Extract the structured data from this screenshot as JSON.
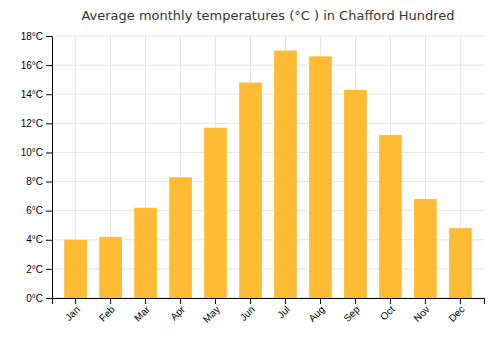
{
  "chart_data": {
    "type": "bar",
    "title": "Average monthly temperatures (°C ) in Chafford Hundred",
    "categories": [
      "Jan",
      "Feb",
      "Mar",
      "Apr",
      "May",
      "Jun",
      "Jul",
      "Aug",
      "Sep",
      "Oct",
      "Nov",
      "Dec"
    ],
    "values": [
      4.0,
      4.2,
      6.2,
      8.3,
      11.7,
      14.8,
      17.0,
      16.6,
      14.3,
      11.2,
      6.8,
      4.8
    ],
    "color": "#FFBB33",
    "ylim": [
      0,
      18
    ],
    "yticks": [
      {
        "value": 0,
        "label": "0°C"
      },
      {
        "value": 2,
        "label": "2°C"
      },
      {
        "value": 4,
        "label": "4°C"
      },
      {
        "value": 6,
        "label": "6°C"
      },
      {
        "value": 8,
        "label": "8°C"
      },
      {
        "value": 10,
        "label": "10°C"
      },
      {
        "value": 12,
        "label": "12°C"
      },
      {
        "value": 14,
        "label": "14°C"
      },
      {
        "value": 16,
        "label": "16°C"
      },
      {
        "value": 18,
        "label": "18°C"
      }
    ],
    "grid": true
  }
}
